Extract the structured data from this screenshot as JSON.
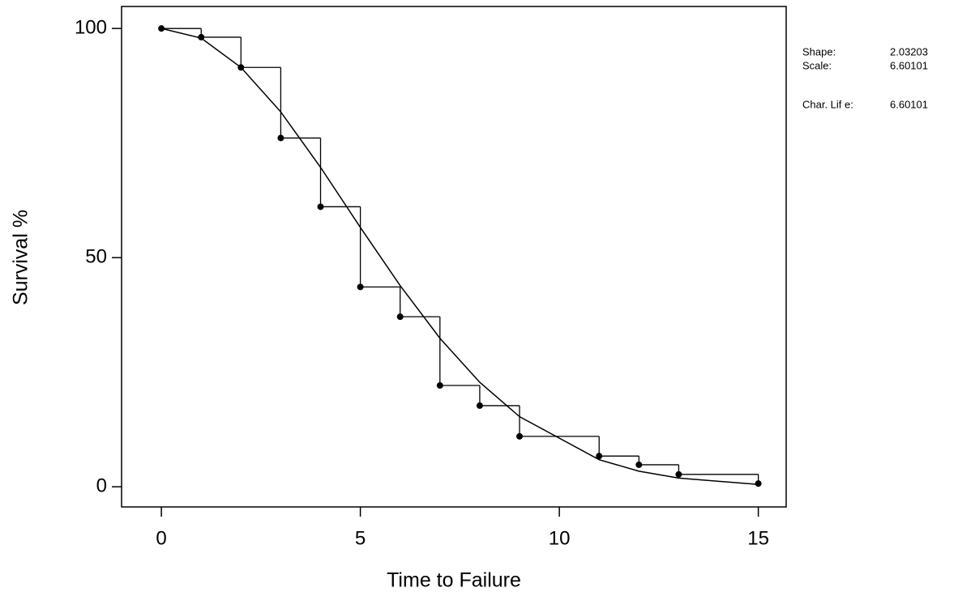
{
  "chart_data": {
    "type": "survival",
    "xlabel": "Time to Failure",
    "ylabel": "Survival %",
    "x": [
      0,
      1,
      2,
      3,
      4,
      5,
      6,
      7,
      8,
      9,
      11,
      12,
      13,
      15
    ],
    "series": [
      {
        "style": "step",
        "markers": true,
        "color": "#000000",
        "values": [
          100,
          98.1,
          91.5,
          76.1,
          61.1,
          43.6,
          37.1,
          22.1,
          17.7,
          11.0,
          6.7,
          4.8,
          2.7,
          0.7
        ]
      },
      {
        "style": "line",
        "markers": false,
        "color": "#000000",
        "values": [
          100,
          97.9,
          91.5,
          81.8,
          69.7,
          56.6,
          43.9,
          32.4,
          22.8,
          15.3,
          5.9,
          3.4,
          1.9,
          0.5
        ]
      }
    ],
    "xlim": [
      -1,
      15.7
    ],
    "ylim": [
      -4.4,
      104.8
    ],
    "xticks": [
      0,
      5,
      10,
      15
    ],
    "yticks": [
      0,
      50,
      100
    ],
    "annotations": [
      {
        "label": "Shape:",
        "value": "2.03203"
      },
      {
        "label": "Scale:",
        "value": "6.60101"
      },
      {
        "label": "Char. Lif e:",
        "value": "6.60101"
      }
    ]
  }
}
